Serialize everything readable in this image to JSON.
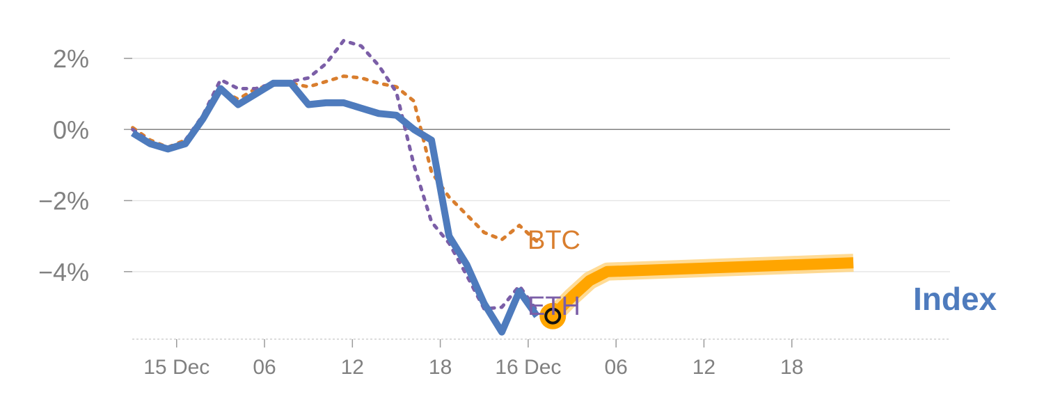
{
  "chart_data": {
    "type": "line",
    "ylim": [
      -5.9,
      2.9
    ],
    "xlim": [
      -1.5,
      45.5
    ],
    "y_ticks": [
      {
        "value": 2,
        "label": "2%"
      },
      {
        "value": 0,
        "label": "0%"
      },
      {
        "value": -2,
        "label": "−2%"
      },
      {
        "value": -4,
        "label": "−4%"
      }
    ],
    "x_ticks": [
      {
        "value": 1.5,
        "label": "15 Dec"
      },
      {
        "value": 6.5,
        "label": "06"
      },
      {
        "value": 11.5,
        "label": "12"
      },
      {
        "value": 16.5,
        "label": "18"
      },
      {
        "value": 21.5,
        "label": "16 Dec"
      },
      {
        "value": 26.5,
        "label": "06"
      },
      {
        "value": 31.5,
        "label": "12"
      },
      {
        "value": 36.5,
        "label": "18"
      }
    ],
    "zero_line": true,
    "grid": true,
    "series": [
      {
        "key": "index_history",
        "style": "solid",
        "color": "#4e7bbd",
        "x": [
          -1,
          0,
          1,
          2,
          3,
          4,
          5,
          6,
          7,
          8,
          9,
          10,
          11,
          12,
          13,
          14,
          15,
          16,
          17,
          18,
          19
        ],
        "y": [
          -0.1,
          -0.4,
          -0.55,
          -0.4,
          0.3,
          1.15,
          0.7,
          1.0,
          1.3,
          1.3,
          0.7,
          0.75,
          0.75,
          0.6,
          0.45,
          0.4,
          0.0,
          -0.3,
          -3.0,
          -3.8,
          -4.9
        ]
      },
      {
        "key": "index_history_tail",
        "style": "solid",
        "color": "#4e7bbd",
        "x": [
          19,
          20,
          21,
          22
        ],
        "y": [
          -4.9,
          -5.7,
          -4.55,
          -5.25
        ]
      },
      {
        "key": "btc",
        "name": "BTC",
        "style": "dotted",
        "color": "#d97e2e",
        "x": [
          -1,
          0,
          1,
          2,
          3,
          4,
          5,
          6,
          7,
          8,
          9,
          10,
          11,
          12,
          13,
          14,
          15,
          16,
          17,
          18,
          19,
          20,
          21,
          22
        ],
        "y": [
          0.05,
          -0.3,
          -0.5,
          -0.3,
          0.3,
          1.1,
          0.85,
          1.15,
          1.25,
          1.3,
          1.2,
          1.35,
          1.5,
          1.45,
          1.3,
          1.2,
          0.8,
          -1.2,
          -1.9,
          -2.4,
          -2.9,
          -3.1,
          -2.7,
          -3.15
        ]
      },
      {
        "key": "eth",
        "name": "ETH",
        "style": "dotted",
        "color": "#7b5ea7",
        "x": [
          -1,
          0,
          1,
          2,
          3,
          4,
          5,
          6,
          7,
          8,
          9,
          10,
          11,
          12,
          13,
          14,
          15,
          16,
          17,
          18,
          19,
          20,
          21,
          22
        ],
        "y": [
          0.0,
          -0.35,
          -0.6,
          -0.3,
          0.4,
          1.4,
          1.15,
          1.15,
          1.3,
          1.35,
          1.45,
          1.85,
          2.5,
          2.35,
          1.8,
          1.05,
          -1.0,
          -2.6,
          -3.2,
          -4.1,
          -5.05,
          -5.0,
          -4.4,
          -5.1
        ]
      },
      {
        "key": "index_forecast",
        "style": "thick",
        "color": "#ffa500",
        "x": [
          22.9,
          24,
          25,
          26,
          40
        ],
        "y": [
          -5.25,
          -4.7,
          -4.25,
          -4.0,
          -3.75
        ]
      }
    ],
    "marker": {
      "x": 22.9,
      "y": -5.25,
      "color": "#ffa500"
    },
    "labels": {
      "btc": "BTC",
      "eth": "ETH",
      "index": "Index"
    }
  }
}
